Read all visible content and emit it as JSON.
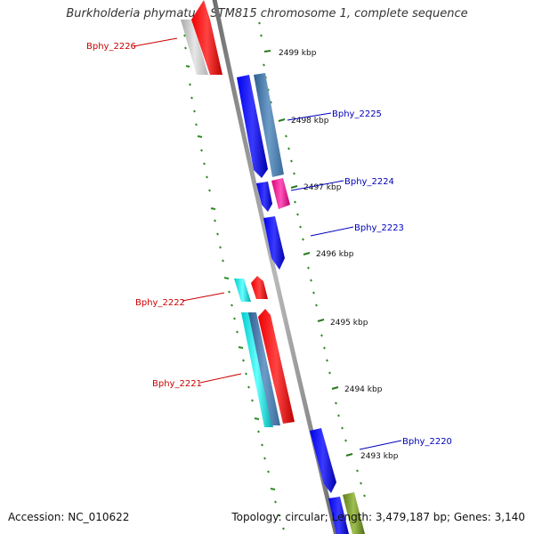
{
  "title": "Burkholderia phymatum STM815 chromosome 1, complete sequence",
  "accession_label": "Accession: NC_010622",
  "topology_label": "Topology: circular; Length: 3,479,187 bp; Genes: 3,140",
  "colors": {
    "backbone": "#8c8c8c",
    "ruler_tick": "#2e8b22",
    "kbp_tick": "#2a7a1e",
    "label_red": "#cc0000",
    "label_blue": "#0000bb"
  },
  "ruler": {
    "unit": "kbp",
    "ticks": [
      "2499 kbp",
      "2498 kbp",
      "2497 kbp",
      "2496 kbp",
      "2495 kbp",
      "2494 kbp",
      "2493 kbp"
    ]
  },
  "genes": [
    {
      "id": "Bphy_2226",
      "label": "Bphy_2226",
      "label_color": "#cc0000"
    },
    {
      "id": "Bphy_2225",
      "label": "Bphy_2225",
      "label_color": "#0000bb"
    },
    {
      "id": "Bphy_2224",
      "label": "Bphy_2224",
      "label_color": "#0000bb"
    },
    {
      "id": "Bphy_2223",
      "label": "Bphy_2223",
      "label_color": "#0000bb"
    },
    {
      "id": "Bphy_2222",
      "label": "Bphy_2222",
      "label_color": "#cc0000"
    },
    {
      "id": "Bphy_2221",
      "label": "Bphy_2221",
      "label_color": "#cc0000"
    },
    {
      "id": "Bphy_2220",
      "label": "Bphy_2220",
      "label_color": "#0000bb"
    }
  ]
}
